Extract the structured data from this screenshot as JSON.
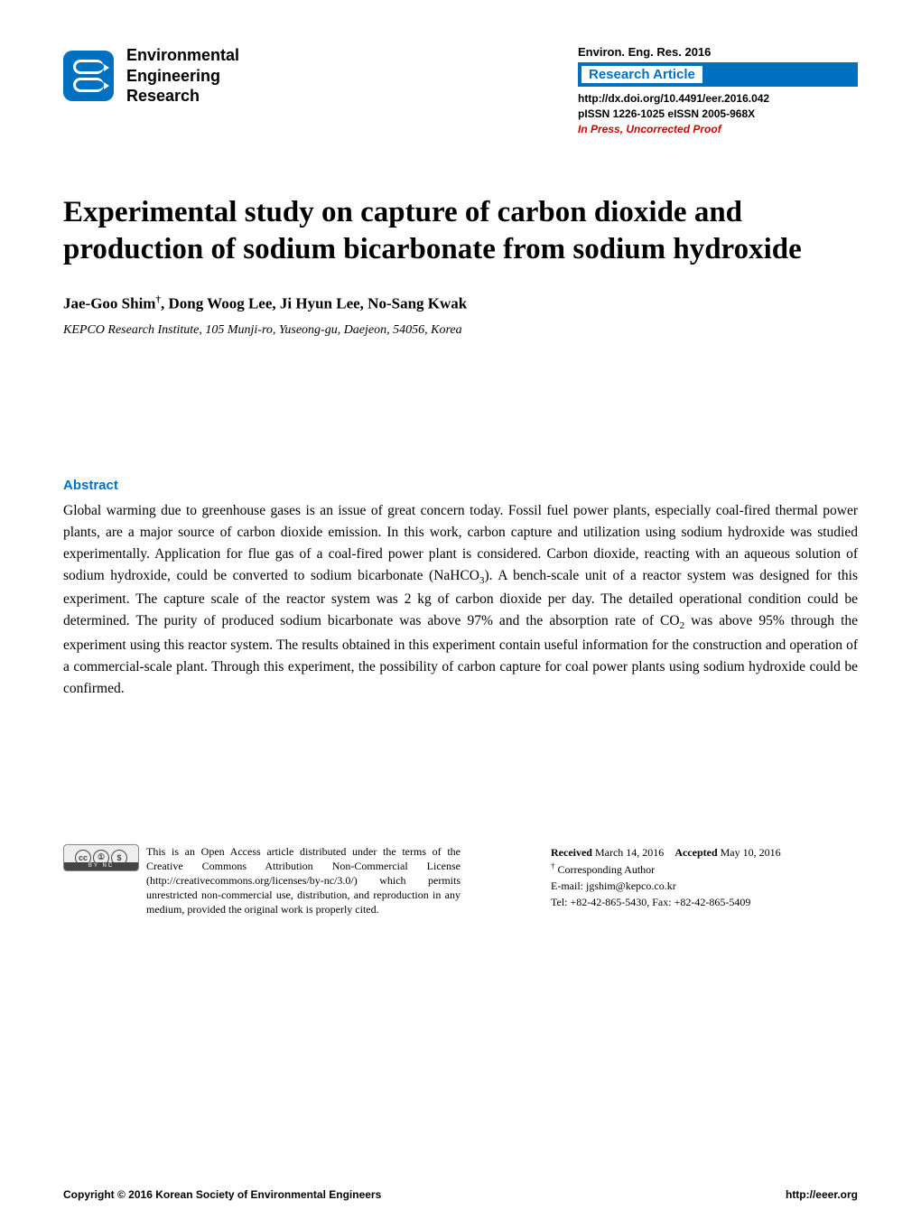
{
  "colors": {
    "accent": "#0070c0",
    "proof_red": "#d00000",
    "text": "#000000",
    "bg": "#ffffff"
  },
  "header": {
    "logo_text_line1": "Environmental",
    "logo_text_line2": "Engineering",
    "logo_text_line3": "Research",
    "journal_line": "Environ. Eng. Res. 2016",
    "badge_label": "Research Article",
    "doi": "http://dx.doi.org/10.4491/eer.2016.042",
    "issn": "pISSN 1226-1025  eISSN 2005-968X",
    "proof": "In Press, Uncorrected Proof"
  },
  "title": "Experimental study on capture of carbon dioxide and production of sodium bicarbonate from sodium hydroxide",
  "authors_html": "Jae-Goo Shim<sup>†</sup>, Dong Woog Lee, Ji Hyun Lee, No-Sang Kwak",
  "affiliation": "KEPCO Research Institute, 105 Munji-ro, Yuseong-gu, Daejeon, 54056, Korea",
  "abstract": {
    "heading": "Abstract",
    "body_html": "Global warming due to greenhouse gases is an issue of great concern today. Fossil fuel power plants, especially coal-fired thermal power plants, are a major source of carbon dioxide emission. In this work, carbon capture and utilization using sodium hydroxide was studied experimentally. Application for flue gas of a coal-fired power plant is considered. Carbon dioxide, reacting with an aqueous solution of sodium hydroxide, could be converted to sodium bicarbonate (NaHCO<sub>3</sub>). A bench-scale unit of a reactor system was designed for this experiment. The capture scale of the reactor system was 2 kg of carbon dioxide per day. The detailed operational condition could be determined. The purity of produced sodium bicarbonate was above 97% and the absorption rate of CO<sub>2</sub> was above 95% through the experiment using this reactor system. The results obtained in this experiment contain useful information for the construction and operation of a commercial-scale plant. Through this experiment, the possibility of carbon capture for coal power plants using sodium hydroxide could be confirmed."
  },
  "license": {
    "cc_strip": "BY    NC",
    "text": "This is an Open Access article distributed under the terms of the Creative Commons Attribution Non-Commercial License (http://creativecommons.org/licenses/by-nc/3.0/) which permits unrestricted non-commercial use, distribution, and reproduction in any medium, provided the original work is properly cited."
  },
  "dates": {
    "received_label": "Received",
    "received_value": "March 14, 2016",
    "accepted_label": "Accepted",
    "accepted_value": "May 10, 2016"
  },
  "corresponding": {
    "label": "Corresponding Author",
    "email": "E-mail: jgshim@kepco.co.kr",
    "tel": "Tel: +82-42-865-5430, Fax: +82-42-865-5409"
  },
  "footer": {
    "copyright": "Copyright © 2016 Korean Society of Environmental Engineers",
    "url": "http://eeer.org"
  }
}
